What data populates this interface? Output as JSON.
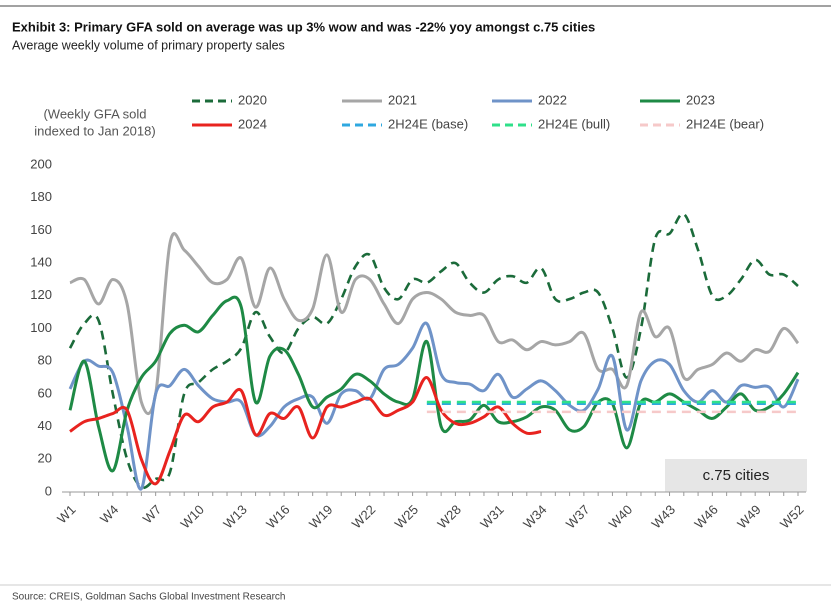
{
  "chart_data": {
    "type": "line",
    "title": "Exhibit 3: Primary GFA sold on average was up 3% wow and was -22% yoy amongst c.75 cities",
    "subtitle": "Average weekly volume of primary property sales",
    "ylabel": [
      "(Weekly GFA sold",
      "indexed to Jan 2018)"
    ],
    "source": "Source: CREIS, Goldman Sachs Global Investment Research",
    "annotation": "c.75 cities",
    "categories": [
      "W1",
      null,
      null,
      "W4",
      null,
      null,
      "W7",
      null,
      null,
      "W10",
      null,
      null,
      "W13",
      null,
      null,
      "W16",
      null,
      null,
      "W19",
      null,
      null,
      "W22",
      null,
      null,
      "W25",
      null,
      null,
      "W28",
      null,
      null,
      "W31",
      null,
      null,
      "W34",
      null,
      null,
      "W37",
      null,
      null,
      "W40",
      null,
      null,
      "W43",
      null,
      null,
      "W46",
      null,
      null,
      "W49",
      null,
      null,
      "W52"
    ],
    "ylim": [
      0,
      200
    ],
    "yticks": [
      0,
      20,
      40,
      60,
      80,
      100,
      120,
      140,
      160,
      180,
      200
    ],
    "series": [
      {
        "name": "2020",
        "color": "#1b6b3a",
        "dashed": true,
        "values": [
          88,
          103,
          105,
          60,
          20,
          3,
          8,
          12,
          60,
          67,
          75,
          80,
          88,
          110,
          95,
          85,
          100,
          107,
          103,
          118,
          138,
          145,
          125,
          118,
          130,
          128,
          135,
          140,
          128,
          122,
          130,
          132,
          128,
          137,
          118,
          118,
          122,
          122,
          100,
          70,
          100,
          155,
          158,
          170,
          148,
          120,
          120,
          130,
          142,
          133,
          133,
          126
        ]
      },
      {
        "name": "2021",
        "color": "#a6a6a6",
        "dashed": false,
        "values": [
          128,
          130,
          115,
          130,
          115,
          55,
          60,
          152,
          148,
          138,
          128,
          130,
          143,
          113,
          137,
          118,
          105,
          112,
          145,
          110,
          130,
          130,
          115,
          103,
          118,
          122,
          118,
          110,
          108,
          108,
          92,
          93,
          87,
          92,
          90,
          92,
          97,
          75,
          75,
          65,
          110,
          95,
          100,
          70,
          75,
          78,
          85,
          80,
          87,
          86,
          100,
          91
        ]
      },
      {
        "name": "2022",
        "color": "#6f93c8",
        "dashed": false,
        "values": [
          63,
          80,
          77,
          73,
          40,
          2,
          60,
          65,
          75,
          65,
          57,
          55,
          55,
          35,
          40,
          52,
          57,
          58,
          42,
          60,
          62,
          57,
          75,
          78,
          88,
          103,
          72,
          67,
          66,
          62,
          72,
          58,
          63,
          68,
          62,
          53,
          50,
          63,
          83,
          38,
          68,
          80,
          78,
          62,
          55,
          62,
          55,
          65,
          64,
          64,
          52,
          69
        ]
      },
      {
        "name": "2023",
        "color": "#1e8a45",
        "dashed": false,
        "values": [
          50,
          80,
          40,
          13,
          50,
          70,
          80,
          97,
          102,
          98,
          108,
          117,
          113,
          55,
          83,
          87,
          72,
          52,
          58,
          63,
          72,
          68,
          60,
          55,
          57,
          92,
          40,
          43,
          44,
          53,
          43,
          43,
          46,
          52,
          50,
          38,
          40,
          55,
          54,
          27,
          55,
          55,
          60,
          55,
          50,
          45,
          52,
          60,
          50,
          52,
          60,
          73
        ]
      },
      {
        "name": "2024",
        "color": "#e8231f",
        "dashed": false,
        "values": [
          37,
          43,
          45,
          48,
          50,
          20,
          5,
          25,
          47,
          43,
          52,
          55,
          62,
          35,
          48,
          45,
          52,
          33,
          52,
          52,
          55,
          57,
          47,
          50,
          55,
          70,
          50,
          42,
          42,
          46,
          52,
          42,
          36,
          37,
          null,
          null,
          null,
          null,
          null,
          null,
          null,
          null,
          null,
          null,
          null,
          null,
          null,
          null,
          null,
          null,
          null,
          null
        ]
      },
      {
        "name": "2H24E (base)",
        "color": "#2fa8e0",
        "dashed": true,
        "values": [
          null,
          null,
          null,
          null,
          null,
          null,
          null,
          null,
          null,
          null,
          null,
          null,
          null,
          null,
          null,
          null,
          null,
          null,
          null,
          null,
          null,
          null,
          null,
          null,
          null,
          54,
          54,
          54,
          54,
          54,
          54,
          54,
          54,
          54,
          54,
          54,
          54,
          54,
          54,
          54,
          54,
          54,
          54,
          54,
          54,
          54,
          54,
          54,
          54,
          54,
          54,
          54
        ]
      },
      {
        "name": "2H24E (bull)",
        "color": "#2fe08a",
        "dashed": true,
        "values": [
          null,
          null,
          null,
          null,
          null,
          null,
          null,
          null,
          null,
          null,
          null,
          null,
          null,
          null,
          null,
          null,
          null,
          null,
          null,
          null,
          null,
          null,
          null,
          null,
          null,
          55,
          55,
          55,
          55,
          55,
          55,
          55,
          55,
          55,
          55,
          55,
          55,
          55,
          55,
          55,
          55,
          55,
          55,
          55,
          55,
          55,
          55,
          55,
          55,
          55,
          55,
          55
        ]
      },
      {
        "name": "2H24E (bear)",
        "color": "#f6c9c9",
        "dashed": true,
        "values": [
          null,
          null,
          null,
          null,
          null,
          null,
          null,
          null,
          null,
          null,
          null,
          null,
          null,
          null,
          null,
          null,
          null,
          null,
          null,
          null,
          null,
          null,
          null,
          null,
          null,
          49,
          49,
          49,
          49,
          49,
          49,
          49,
          49,
          49,
          49,
          49,
          49,
          49,
          49,
          49,
          49,
          49,
          49,
          49,
          49,
          49,
          49,
          49,
          49,
          49,
          49,
          49
        ]
      }
    ]
  }
}
